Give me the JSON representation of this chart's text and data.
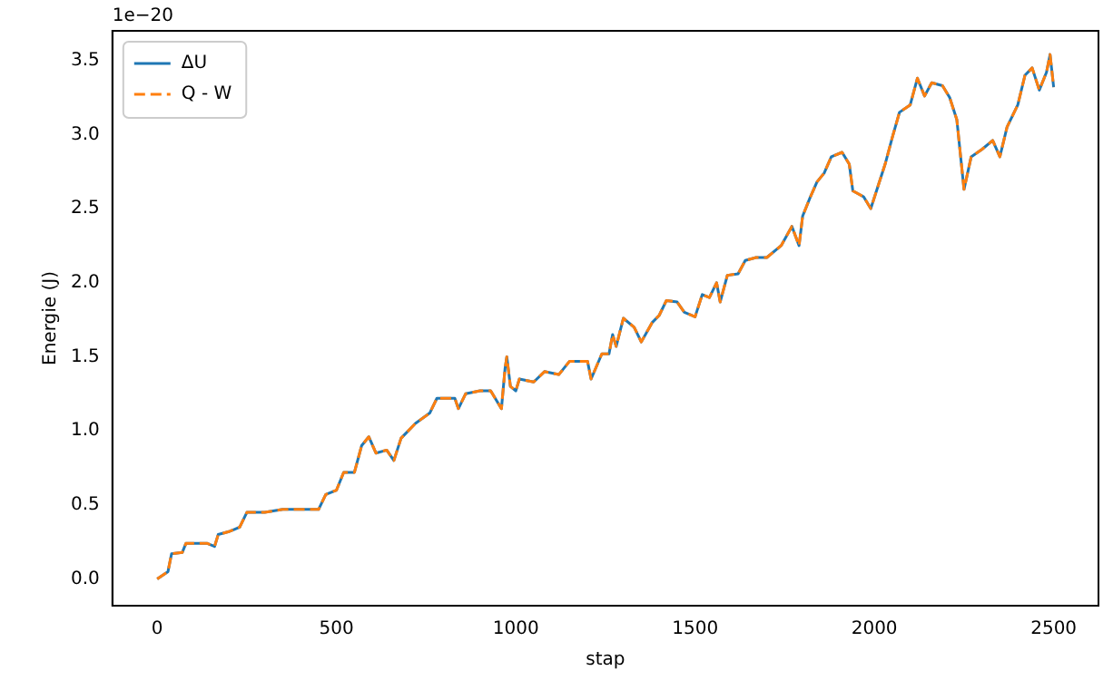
{
  "chart_data": {
    "type": "line",
    "xlabel": "stap",
    "ylabel": "Energie (J)",
    "annotations": [
      "1e−20"
    ],
    "xlim": [
      -125,
      2625
    ],
    "xticks": [
      0,
      500,
      1000,
      1500,
      2000,
      2500
    ],
    "ylim": [
      -0.18,
      3.7
    ],
    "yticks": [
      {
        "value": 0,
        "label": "0.0"
      },
      {
        "value": 0.5,
        "label": "0.5"
      },
      {
        "value": 1,
        "label": "1.0"
      },
      {
        "value": 1.5,
        "label": "1.5"
      },
      {
        "value": 2,
        "label": "2.0"
      },
      {
        "value": 2.5,
        "label": "2.5"
      },
      {
        "value": 3,
        "label": "3.0"
      },
      {
        "value": 3.5,
        "label": "3.5"
      }
    ],
    "x": [
      0,
      30,
      40,
      70,
      80,
      140,
      160,
      170,
      200,
      230,
      250,
      300,
      350,
      400,
      450,
      470,
      500,
      520,
      550,
      570,
      590,
      610,
      640,
      660,
      680,
      720,
      760,
      780,
      830,
      840,
      860,
      900,
      930,
      960,
      970,
      975,
      985,
      1000,
      1010,
      1050,
      1080,
      1120,
      1150,
      1200,
      1210,
      1240,
      1260,
      1270,
      1280,
      1300,
      1330,
      1350,
      1380,
      1400,
      1420,
      1450,
      1470,
      1500,
      1520,
      1540,
      1560,
      1570,
      1590,
      1620,
      1640,
      1670,
      1700,
      1740,
      1770,
      1790,
      1800,
      1820,
      1840,
      1860,
      1880,
      1910,
      1930,
      1940,
      1970,
      1990,
      2010,
      2030,
      2050,
      2070,
      2100,
      2120,
      2140,
      2160,
      2190,
      2210,
      2230,
      2250,
      2270,
      2300,
      2330,
      2350,
      2370,
      2400,
      2420,
      2440,
      2460,
      2480,
      2490,
      2500
    ],
    "legend": "top left",
    "grid": false,
    "series": [
      {
        "name": "ΔU",
        "color": "#1f77b4",
        "line_style": "solid",
        "values": [
          0,
          0.05,
          0.17,
          0.18,
          0.24,
          0.24,
          0.22,
          0.3,
          0.32,
          0.35,
          0.45,
          0.45,
          0.47,
          0.47,
          0.47,
          0.57,
          0.6,
          0.72,
          0.72,
          0.9,
          0.96,
          0.85,
          0.87,
          0.8,
          0.95,
          1.05,
          1.12,
          1.22,
          1.22,
          1.15,
          1.25,
          1.27,
          1.27,
          1.15,
          1.42,
          1.5,
          1.3,
          1.27,
          1.35,
          1.33,
          1.4,
          1.38,
          1.47,
          1.47,
          1.35,
          1.52,
          1.52,
          1.65,
          1.57,
          1.76,
          1.7,
          1.6,
          1.73,
          1.78,
          1.88,
          1.87,
          1.8,
          1.77,
          1.92,
          1.9,
          2,
          1.87,
          2.05,
          2.06,
          2.15,
          2.17,
          2.17,
          2.25,
          2.38,
          2.25,
          2.45,
          2.57,
          2.68,
          2.74,
          2.85,
          2.88,
          2.8,
          2.62,
          2.58,
          2.5,
          2.65,
          2.8,
          2.98,
          3.15,
          3.2,
          3.38,
          3.26,
          3.35,
          3.33,
          3.25,
          3.1,
          2.63,
          2.85,
          2.9,
          2.96,
          2.85,
          3.05,
          3.2,
          3.4,
          3.45,
          3.3,
          3.42,
          3.54,
          3.32
        ]
      },
      {
        "name": "Q - W",
        "color": "#ff7f0e",
        "line_style": "dashed",
        "values": [
          0,
          0.05,
          0.17,
          0.18,
          0.24,
          0.24,
          0.22,
          0.3,
          0.32,
          0.35,
          0.45,
          0.45,
          0.47,
          0.47,
          0.47,
          0.57,
          0.6,
          0.72,
          0.72,
          0.9,
          0.96,
          0.85,
          0.87,
          0.8,
          0.95,
          1.05,
          1.12,
          1.22,
          1.22,
          1.15,
          1.25,
          1.27,
          1.27,
          1.15,
          1.42,
          1.5,
          1.3,
          1.27,
          1.35,
          1.33,
          1.4,
          1.38,
          1.47,
          1.47,
          1.35,
          1.52,
          1.52,
          1.65,
          1.57,
          1.76,
          1.7,
          1.6,
          1.73,
          1.78,
          1.88,
          1.87,
          1.8,
          1.77,
          1.92,
          1.9,
          2,
          1.87,
          2.05,
          2.06,
          2.15,
          2.17,
          2.17,
          2.25,
          2.38,
          2.25,
          2.45,
          2.57,
          2.68,
          2.74,
          2.85,
          2.88,
          2.8,
          2.62,
          2.58,
          2.5,
          2.65,
          2.8,
          2.98,
          3.15,
          3.2,
          3.38,
          3.26,
          3.35,
          3.33,
          3.25,
          3.1,
          2.63,
          2.85,
          2.9,
          2.96,
          2.85,
          3.05,
          3.2,
          3.4,
          3.45,
          3.3,
          3.42,
          3.54,
          3.32
        ]
      }
    ]
  }
}
